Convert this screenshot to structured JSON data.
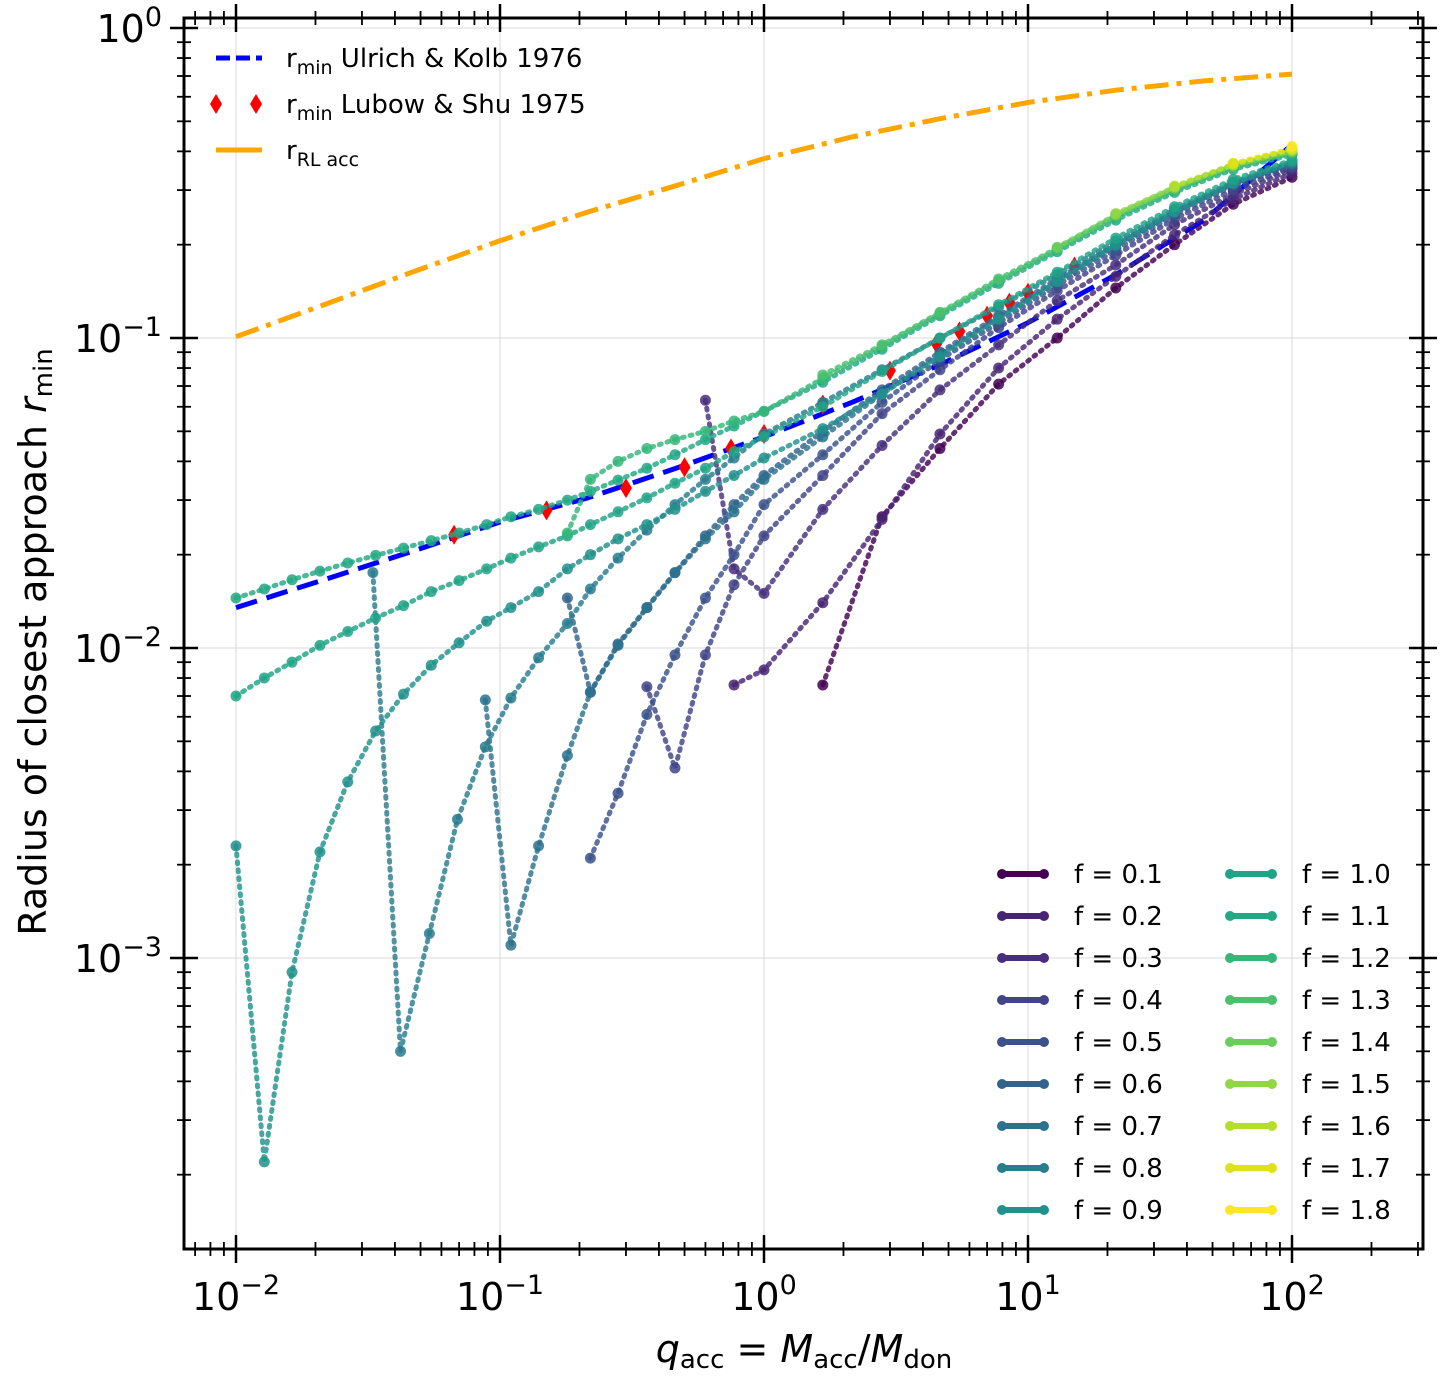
{
  "chart_data": {
    "type": "line",
    "x_scale": "log",
    "y_scale": "log",
    "xlim": [
      0.0063,
      320
    ],
    "ylim": [
      0.00015,
      1.0
    ],
    "grid": true,
    "xlabel": {
      "q": "q",
      "acc1": "acc",
      "eq": " = ",
      "M1": "M",
      "acc2": "acc",
      "slash": "/",
      "M2": "M",
      "don": "don"
    },
    "ylabel": {
      "text": "Radius of closest approach ",
      "r": "r",
      "sub": "min"
    },
    "x_ticks": [
      {
        "value": 0.01,
        "base": "10",
        "exp": "−2"
      },
      {
        "value": 0.1,
        "base": "10",
        "exp": "−1"
      },
      {
        "value": 1,
        "base": "10",
        "exp": "0"
      },
      {
        "value": 10,
        "base": "10",
        "exp": "1"
      },
      {
        "value": 100,
        "base": "10",
        "exp": "2"
      }
    ],
    "y_ticks": [
      {
        "value": 0.001,
        "base": "10",
        "exp": "−3"
      },
      {
        "value": 0.01,
        "base": "10",
        "exp": "−2"
      },
      {
        "value": 0.1,
        "base": "10",
        "exp": "−1"
      },
      {
        "value": 1,
        "base": "10",
        "exp": "0"
      }
    ],
    "reference_lines": [
      {
        "name": "Ulrich & Kolb 1976",
        "label_main": "r",
        "label_sub": "min",
        "label_rest": " Ulrich & Kolb 1976",
        "style": "dashed",
        "color": "#0000ff",
        "x": [
          0.01,
          0.0215,
          0.0464,
          0.1,
          0.215,
          0.464,
          1,
          2.15,
          4.64,
          10,
          21.5,
          46.4,
          100
        ],
        "y": [
          0.0135,
          0.0166,
          0.0205,
          0.0255,
          0.0305,
          0.038,
          0.048,
          0.062,
          0.082,
          0.112,
          0.16,
          0.24,
          0.42
        ]
      },
      {
        "name": "Lubow & Shu 1975",
        "label_main": "r",
        "label_sub": "min",
        "label_rest": " Lubow & Shu 1975",
        "style": "diamonds",
        "color": "#ff0000",
        "x": [
          0.067,
          0.15,
          0.3,
          0.5,
          0.75,
          1.0,
          1.67,
          3.0,
          4.5,
          5.5,
          7.0,
          8.5,
          10,
          15
        ],
        "y": [
          0.0232,
          0.0278,
          0.0328,
          0.0383,
          0.044,
          0.049,
          0.061,
          0.0785,
          0.096,
          0.105,
          0.118,
          0.13,
          0.14,
          0.17
        ]
      },
      {
        "name": "RL acc",
        "label_main": "r",
        "label_sub": "RL acc",
        "label_rest": "",
        "style": "dashdot",
        "color": "#ffa500",
        "x": [
          0.01,
          0.0215,
          0.0464,
          0.1,
          0.215,
          0.464,
          1,
          2.15,
          4.64,
          10,
          21.5,
          46.4,
          100
        ],
        "y": [
          0.101,
          0.128,
          0.163,
          0.206,
          0.255,
          0.31,
          0.379,
          0.445,
          0.51,
          0.575,
          0.63,
          0.675,
          0.71
        ]
      }
    ],
    "series": [
      {
        "name": "f = 0.1",
        "color": "#440154",
        "x": [
          1.67,
          2.8,
          4.64,
          7.74,
          12.9,
          21.5,
          35.9,
          59.9,
          100
        ],
        "y": [
          0.0076,
          0.0265,
          0.044,
          0.071,
          0.1,
          0.145,
          0.2,
          0.27,
          0.33
        ]
      },
      {
        "name": "f = 0.2",
        "color": "#482475",
        "x": [
          0.77,
          1.0,
          1.67,
          2.8,
          4.64,
          7.74,
          12.9,
          21.5,
          35.9,
          59.9,
          100
        ],
        "y": [
          0.0076,
          0.0085,
          0.014,
          0.026,
          0.049,
          0.08,
          0.115,
          0.158,
          0.215,
          0.28,
          0.34
        ]
      },
      {
        "name": "f = 0.3",
        "color": "#472f7d",
        "x": [
          0.6,
          0.77,
          1.0,
          1.67,
          2.8,
          4.64,
          7.74,
          12.9,
          21.5,
          35.9,
          59.9,
          100
        ],
        "y": [
          0.063,
          0.018,
          0.015,
          0.028,
          0.045,
          0.068,
          0.095,
          0.132,
          0.172,
          0.232,
          0.29,
          0.35
        ]
      },
      {
        "name": "f = 0.4",
        "color": "#414487",
        "x": [
          0.36,
          0.46,
          0.6,
          0.77,
          1.0,
          1.67,
          2.8,
          4.64,
          7.74,
          12.9,
          21.5,
          35.9,
          59.9,
          100
        ],
        "y": [
          0.0075,
          0.0041,
          0.0095,
          0.016,
          0.023,
          0.036,
          0.057,
          0.079,
          0.108,
          0.142,
          0.185,
          0.242,
          0.3,
          0.355
        ]
      },
      {
        "name": "f = 0.5",
        "color": "#3b528b",
        "x": [
          0.22,
          0.28,
          0.36,
          0.46,
          0.6,
          0.77,
          1.0,
          1.67,
          2.8,
          4.64,
          7.74,
          12.9,
          21.5,
          35.9,
          59.9,
          100
        ],
        "y": [
          0.0021,
          0.0034,
          0.0061,
          0.0095,
          0.0145,
          0.02,
          0.029,
          0.042,
          0.062,
          0.085,
          0.112,
          0.148,
          0.192,
          0.25,
          0.31,
          0.36
        ]
      },
      {
        "name": "f = 0.6",
        "color": "#33638d",
        "x": [
          0.18,
          0.22,
          0.28,
          0.36,
          0.46,
          0.6,
          0.77,
          1.0,
          1.67,
          2.8,
          4.64,
          7.74,
          12.9,
          21.5,
          35.9,
          59.9,
          100
        ],
        "y": [
          0.0145,
          0.0072,
          0.0103,
          0.0135,
          0.0175,
          0.023,
          0.029,
          0.036,
          0.05,
          0.068,
          0.09,
          0.118,
          0.155,
          0.2,
          0.255,
          0.315,
          0.365
        ]
      },
      {
        "name": "f = 0.7",
        "color": "#2c728e",
        "x": [
          0.088,
          0.11,
          0.14,
          0.18,
          0.22,
          0.28,
          0.36,
          0.46,
          0.6,
          0.77,
          1.0,
          1.67,
          2.8,
          4.64,
          7.74,
          12.9,
          21.5,
          35.9,
          59.9,
          100
        ],
        "y": [
          0.0068,
          0.0011,
          0.0023,
          0.0045,
          0.0072,
          0.0102,
          0.0135,
          0.0175,
          0.0225,
          0.0275,
          0.035,
          0.048,
          0.066,
          0.088,
          0.116,
          0.152,
          0.198,
          0.255,
          0.315,
          0.365
        ]
      },
      {
        "name": "f = 0.8",
        "color": "#287d8e",
        "x": [
          0.033,
          0.042,
          0.054,
          0.069,
          0.088,
          0.11,
          0.14,
          0.18,
          0.22,
          0.28,
          0.36,
          0.46,
          0.6,
          0.77,
          1.0,
          1.67,
          2.8,
          4.64,
          7.74,
          12.9,
          21.5,
          35.9,
          59.9,
          100
        ],
        "y": [
          0.0175,
          0.0005,
          0.0012,
          0.0028,
          0.0048,
          0.0069,
          0.0093,
          0.012,
          0.0155,
          0.0195,
          0.024,
          0.029,
          0.035,
          0.041,
          0.049,
          0.062,
          0.079,
          0.1,
          0.126,
          0.16,
          0.205,
          0.26,
          0.318,
          0.37
        ]
      },
      {
        "name": "f = 0.9",
        "color": "#21918c",
        "x": [
          0.01,
          0.0128,
          0.0163,
          0.0208,
          0.0265,
          0.0338,
          0.0431,
          0.0549,
          0.07,
          0.089,
          0.11,
          0.14,
          0.18,
          0.22,
          0.28,
          0.36,
          0.46,
          0.6,
          0.77,
          1.0,
          1.67,
          2.8,
          4.64,
          7.74,
          12.9,
          21.5,
          35.9,
          59.9,
          100
        ],
        "y": [
          0.0023,
          0.00022,
          0.0009,
          0.0022,
          0.0037,
          0.0054,
          0.0071,
          0.0088,
          0.0104,
          0.0122,
          0.0135,
          0.0152,
          0.018,
          0.02,
          0.0225,
          0.025,
          0.028,
          0.032,
          0.036,
          0.041,
          0.051,
          0.066,
          0.087,
          0.115,
          0.152,
          0.2,
          0.255,
          0.315,
          0.37
        ]
      },
      {
        "name": "f = 1.0",
        "color": "#20a386",
        "x": [
          0.01,
          0.0128,
          0.0163,
          0.0208,
          0.0265,
          0.0338,
          0.0431,
          0.0549,
          0.07,
          0.089,
          0.11,
          0.14,
          0.18,
          0.22,
          0.28,
          0.36,
          0.46,
          0.6,
          0.77,
          1.0,
          1.67,
          2.8,
          4.64,
          7.74,
          12.9,
          21.5,
          35.9,
          59.9,
          100
        ],
        "y": [
          0.007,
          0.008,
          0.009,
          0.0102,
          0.0113,
          0.0125,
          0.0137,
          0.0152,
          0.0165,
          0.018,
          0.0195,
          0.0212,
          0.023,
          0.025,
          0.0275,
          0.0305,
          0.034,
          0.038,
          0.043,
          0.048,
          0.06,
          0.078,
          0.1,
          0.128,
          0.163,
          0.21,
          0.265,
          0.325,
          0.375
        ]
      },
      {
        "name": "f = 1.1",
        "color": "#22a884",
        "x": [
          0.01,
          0.0128,
          0.0163,
          0.0208,
          0.0265,
          0.0338,
          0.0431,
          0.0549,
          0.07,
          0.089,
          0.11,
          0.14,
          0.18,
          0.22,
          0.28,
          0.36,
          0.46,
          0.6,
          0.77,
          1.0,
          1.67,
          2.8,
          4.64,
          7.74,
          12.9,
          21.5,
          35.9,
          59.9,
          100
        ],
        "y": [
          0.0145,
          0.0155,
          0.0166,
          0.0177,
          0.0188,
          0.0199,
          0.021,
          0.0222,
          0.0235,
          0.025,
          0.0265,
          0.028,
          0.03,
          0.032,
          0.0348,
          0.038,
          0.042,
          0.047,
          0.052,
          0.058,
          0.072,
          0.092,
          0.118,
          0.15,
          0.19,
          0.24,
          0.295,
          0.35,
          0.39
        ]
      },
      {
        "name": "f = 1.2",
        "color": "#35b779",
        "x": [
          0.18,
          0.22,
          0.28,
          0.36,
          0.46,
          0.6,
          0.77,
          1.0,
          1.67,
          2.8,
          4.64,
          7.74,
          12.9,
          21.5,
          35.9,
          59.9,
          100
        ],
        "y": [
          0.0235,
          0.035,
          0.04,
          0.044,
          0.047,
          0.05,
          0.054,
          0.058,
          0.074,
          0.094,
          0.12,
          0.153,
          0.193,
          0.245,
          0.3,
          0.355,
          0.395
        ]
      },
      {
        "name": "f = 1.3",
        "color": "#4ac16d",
        "x": [
          1.67,
          2.8,
          4.64,
          7.74,
          12.9,
          21.5,
          35.9,
          59.9,
          100
        ],
        "y": [
          0.076,
          0.095,
          0.121,
          0.155,
          0.195,
          0.248,
          0.302,
          0.357,
          0.398
        ]
      },
      {
        "name": "f = 1.4",
        "color": "#6ccd5a",
        "x": [
          12.9,
          21.5,
          35.9,
          59.9,
          100
        ],
        "y": [
          0.196,
          0.25,
          0.305,
          0.36,
          0.4
        ]
      },
      {
        "name": "f = 1.5",
        "color": "#90d743",
        "x": [
          21.5,
          35.9,
          59.9,
          100
        ],
        "y": [
          0.252,
          0.307,
          0.362,
          0.403
        ]
      },
      {
        "name": "f = 1.6",
        "color": "#b5de2b",
        "x": [
          35.9,
          59.9,
          100
        ],
        "y": [
          0.309,
          0.364,
          0.405
        ]
      },
      {
        "name": "f = 1.7",
        "color": "#dde318",
        "x": [
          59.9,
          100
        ],
        "y": [
          0.366,
          0.408
        ]
      },
      {
        "name": "f = 1.8",
        "color": "#fde725",
        "x": [
          100
        ],
        "y": [
          0.415
        ]
      }
    ]
  }
}
